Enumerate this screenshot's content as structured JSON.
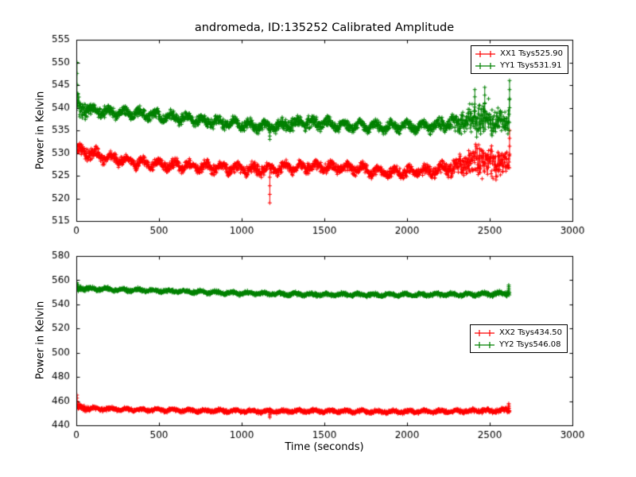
{
  "chart_data": {
    "type": "scatter",
    "title": "andromeda, ID:135252 Calibrated Amplitude",
    "xlabel": "Time (seconds)",
    "ylabel": "Power in Kelvin",
    "marker": "+",
    "subplots": [
      {
        "xlim": [
          0,
          3000
        ],
        "ylim": [
          515,
          555
        ],
        "xticks": [
          0,
          500,
          1000,
          1500,
          2000,
          2500,
          3000
        ],
        "yticks": [
          515,
          520,
          525,
          530,
          535,
          540,
          545,
          550,
          555
        ],
        "x_end": 2620,
        "legend": "upper right",
        "series": [
          {
            "name": "XX1 Tsys525.90",
            "color": "#ff0000",
            "osc": {
              "amp": 0.7,
              "period": 95,
              "phase": 0
            },
            "trend": [
              [
                0,
                530.8,
                1.6
              ],
              [
                100,
                529.8,
                1.4
              ],
              [
                200,
                529.0,
                1.3
              ],
              [
                300,
                528.3,
                1.3
              ],
              [
                400,
                527.6,
                1.3
              ],
              [
                500,
                527.4,
                1.3
              ],
              [
                600,
                527.2,
                1.3
              ],
              [
                700,
                527.0,
                1.3
              ],
              [
                800,
                526.9,
                1.3
              ],
              [
                900,
                526.7,
                1.3
              ],
              [
                1000,
                526.5,
                1.3
              ],
              [
                1100,
                526.4,
                1.5
              ],
              [
                1200,
                526.6,
                1.4
              ],
              [
                1300,
                526.9,
                1.4
              ],
              [
                1400,
                527.1,
                1.5
              ],
              [
                1500,
                526.9,
                1.4
              ],
              [
                1600,
                526.7,
                1.3
              ],
              [
                1700,
                526.6,
                1.3
              ],
              [
                1800,
                526.0,
                1.3
              ],
              [
                1900,
                525.7,
                1.3
              ],
              [
                2000,
                525.8,
                1.3
              ],
              [
                2100,
                526.0,
                1.3
              ],
              [
                2200,
                526.3,
                1.4
              ],
              [
                2300,
                527.0,
                2.4
              ],
              [
                2400,
                528.3,
                4.2
              ],
              [
                2500,
                528.3,
                4.2
              ],
              [
                2600,
                527.3,
                2.6
              ],
              [
                2620,
                528.0,
                4.5
              ]
            ],
            "spikes": [
              [
                1170,
                519
              ],
              [
                2620,
                535
              ]
            ]
          },
          {
            "name": "YY1 Tsys531.91",
            "color": "#008000",
            "osc": {
              "amp": 0.7,
              "period": 95,
              "phase": 1.3
            },
            "trend": [
              [
                0,
                540.3,
                3.0
              ],
              [
                100,
                539.3,
                1.5
              ],
              [
                200,
                539.0,
                1.3
              ],
              [
                300,
                538.8,
                1.3
              ],
              [
                400,
                538.6,
                1.3
              ],
              [
                500,
                538.2,
                1.3
              ],
              [
                600,
                537.8,
                1.3
              ],
              [
                700,
                537.4,
                1.3
              ],
              [
                800,
                537.0,
                1.3
              ],
              [
                900,
                536.6,
                1.3
              ],
              [
                1000,
                536.3,
                1.3
              ],
              [
                1100,
                536.0,
                1.4
              ],
              [
                1200,
                536.0,
                1.4
              ],
              [
                1300,
                536.3,
                1.7
              ],
              [
                1400,
                536.7,
                1.8
              ],
              [
                1500,
                536.4,
                1.5
              ],
              [
                1600,
                536.1,
                1.3
              ],
              [
                1700,
                536.0,
                1.3
              ],
              [
                1800,
                535.9,
                1.3
              ],
              [
                1900,
                535.8,
                1.3
              ],
              [
                2000,
                536.0,
                1.3
              ],
              [
                2100,
                535.9,
                1.3
              ],
              [
                2200,
                536.1,
                1.5
              ],
              [
                2300,
                536.8,
                2.8
              ],
              [
                2400,
                537.6,
                4.4
              ],
              [
                2500,
                537.6,
                4.4
              ],
              [
                2600,
                536.4,
                2.8
              ],
              [
                2620,
                538.0,
                5.5
              ]
            ],
            "spikes": [
              [
                4,
                550
              ],
              [
                1170,
                533
              ],
              [
                2410,
                544
              ],
              [
                2470,
                544.5
              ],
              [
                2620,
                546
              ]
            ]
          }
        ]
      },
      {
        "xlim": [
          0,
          3000
        ],
        "ylim": [
          440,
          580
        ],
        "xticks": [
          0,
          500,
          1000,
          1500,
          2000,
          2500,
          3000
        ],
        "yticks": [
          440,
          460,
          480,
          500,
          520,
          540,
          560,
          580
        ],
        "x_end": 2620,
        "legend": "center right",
        "series": [
          {
            "name": "XX2 Tsys434.50",
            "color": "#ff0000",
            "osc": {
              "amp": 0.8,
              "period": 95,
              "phase": 0.5
            },
            "trend": [
              [
                0,
                455.0,
                3.2
              ],
              [
                100,
                453.8,
                1.8
              ],
              [
                200,
                453.4,
                1.6
              ],
              [
                300,
                453.0,
                1.6
              ],
              [
                400,
                452.8,
                1.6
              ],
              [
                500,
                452.6,
                1.6
              ],
              [
                600,
                452.4,
                1.6
              ],
              [
                700,
                452.2,
                1.6
              ],
              [
                800,
                452.0,
                1.6
              ],
              [
                900,
                451.8,
                1.6
              ],
              [
                1000,
                451.7,
                1.6
              ],
              [
                1100,
                451.6,
                1.7
              ],
              [
                1200,
                451.6,
                1.6
              ],
              [
                1300,
                451.7,
                1.6
              ],
              [
                1400,
                451.8,
                1.6
              ],
              [
                1500,
                451.7,
                1.6
              ],
              [
                1600,
                451.6,
                1.6
              ],
              [
                1700,
                451.5,
                1.6
              ],
              [
                1800,
                451.4,
                1.6
              ],
              [
                1900,
                451.3,
                1.6
              ],
              [
                2000,
                451.4,
                1.6
              ],
              [
                2100,
                451.5,
                1.6
              ],
              [
                2200,
                451.6,
                1.6
              ],
              [
                2300,
                451.7,
                1.7
              ],
              [
                2400,
                451.9,
                1.8
              ],
              [
                2500,
                452.0,
                2.0
              ],
              [
                2600,
                452.3,
                2.4
              ],
              [
                2620,
                453.0,
                3.4
              ]
            ],
            "spikes": [
              [
                4,
                465
              ],
              [
                1170,
                446.5
              ],
              [
                2615,
                458
              ]
            ]
          },
          {
            "name": "YY2 Tsys546.08",
            "color": "#008000",
            "osc": {
              "amp": 0.8,
              "period": 95,
              "phase": 2.1
            },
            "trend": [
              [
                0,
                553.5,
                3.0
              ],
              [
                100,
                552.8,
                1.8
              ],
              [
                200,
                552.4,
                1.6
              ],
              [
                300,
                552.0,
                1.6
              ],
              [
                400,
                551.6,
                1.6
              ],
              [
                500,
                551.2,
                1.6
              ],
              [
                600,
                550.8,
                1.6
              ],
              [
                700,
                550.4,
                1.6
              ],
              [
                800,
                550.0,
                1.6
              ],
              [
                900,
                549.6,
                1.6
              ],
              [
                1000,
                549.3,
                1.6
              ],
              [
                1100,
                549.0,
                1.6
              ],
              [
                1200,
                548.7,
                1.6
              ],
              [
                1300,
                548.5,
                1.6
              ],
              [
                1400,
                548.3,
                1.6
              ],
              [
                1500,
                548.2,
                1.6
              ],
              [
                1600,
                548.1,
                1.6
              ],
              [
                1700,
                548.0,
                1.6
              ],
              [
                1800,
                547.9,
                1.6
              ],
              [
                1900,
                547.9,
                1.6
              ],
              [
                2000,
                548.0,
                1.6
              ],
              [
                2100,
                548.0,
                1.6
              ],
              [
                2200,
                548.1,
                1.6
              ],
              [
                2300,
                548.2,
                1.6
              ],
              [
                2400,
                548.3,
                1.7
              ],
              [
                2500,
                548.5,
                1.8
              ],
              [
                2600,
                549.0,
                2.2
              ],
              [
                2620,
                551.0,
                3.5
              ]
            ],
            "spikes": [
              [
                4,
                558
              ],
              [
                2615,
                556
              ]
            ]
          }
        ]
      }
    ]
  }
}
